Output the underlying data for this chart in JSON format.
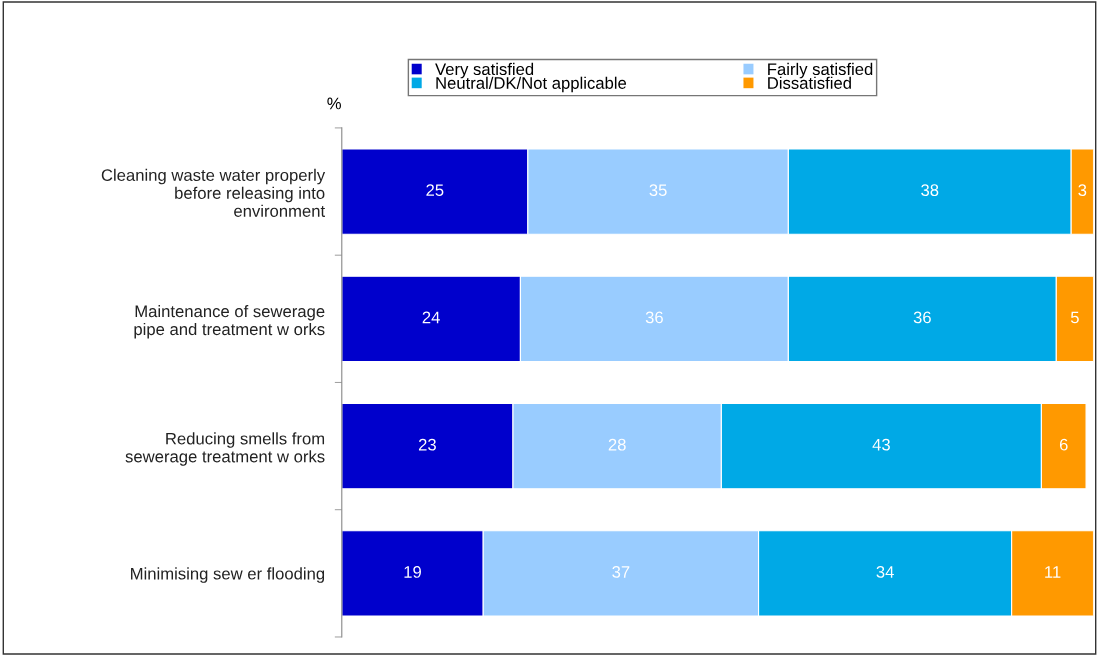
{
  "chart_data": {
    "type": "bar",
    "orientation": "horizontal",
    "stacked": true,
    "data_labels": true,
    "legend": "top",
    "grid": false,
    "tick_labels": "y",
    "categories": [
      "Cleaning waste water properly\nbefore releasing into\nenvironment",
      "Maintenance of sewerage\npipe and treatment w orks",
      "Reducing smells from\nsewerage treatment w orks",
      "Minimising sew er flooding"
    ],
    "annotations": [
      "%"
    ],
    "series": [
      {
        "name": "Very satisfied",
        "color": "#0000cc",
        "values": [
          25,
          24,
          23,
          19
        ]
      },
      {
        "name": "Fairly satisfied",
        "color": "#99ccff",
        "values": [
          35,
          36,
          28,
          37
        ]
      },
      {
        "name": "Neutral/DK/Not applicable",
        "color": "#00a9e6",
        "values": [
          38,
          36,
          43,
          34
        ]
      },
      {
        "name": "Dissatisfied",
        "color": "#ff9900",
        "values": [
          3,
          5,
          6,
          11
        ]
      }
    ]
  }
}
